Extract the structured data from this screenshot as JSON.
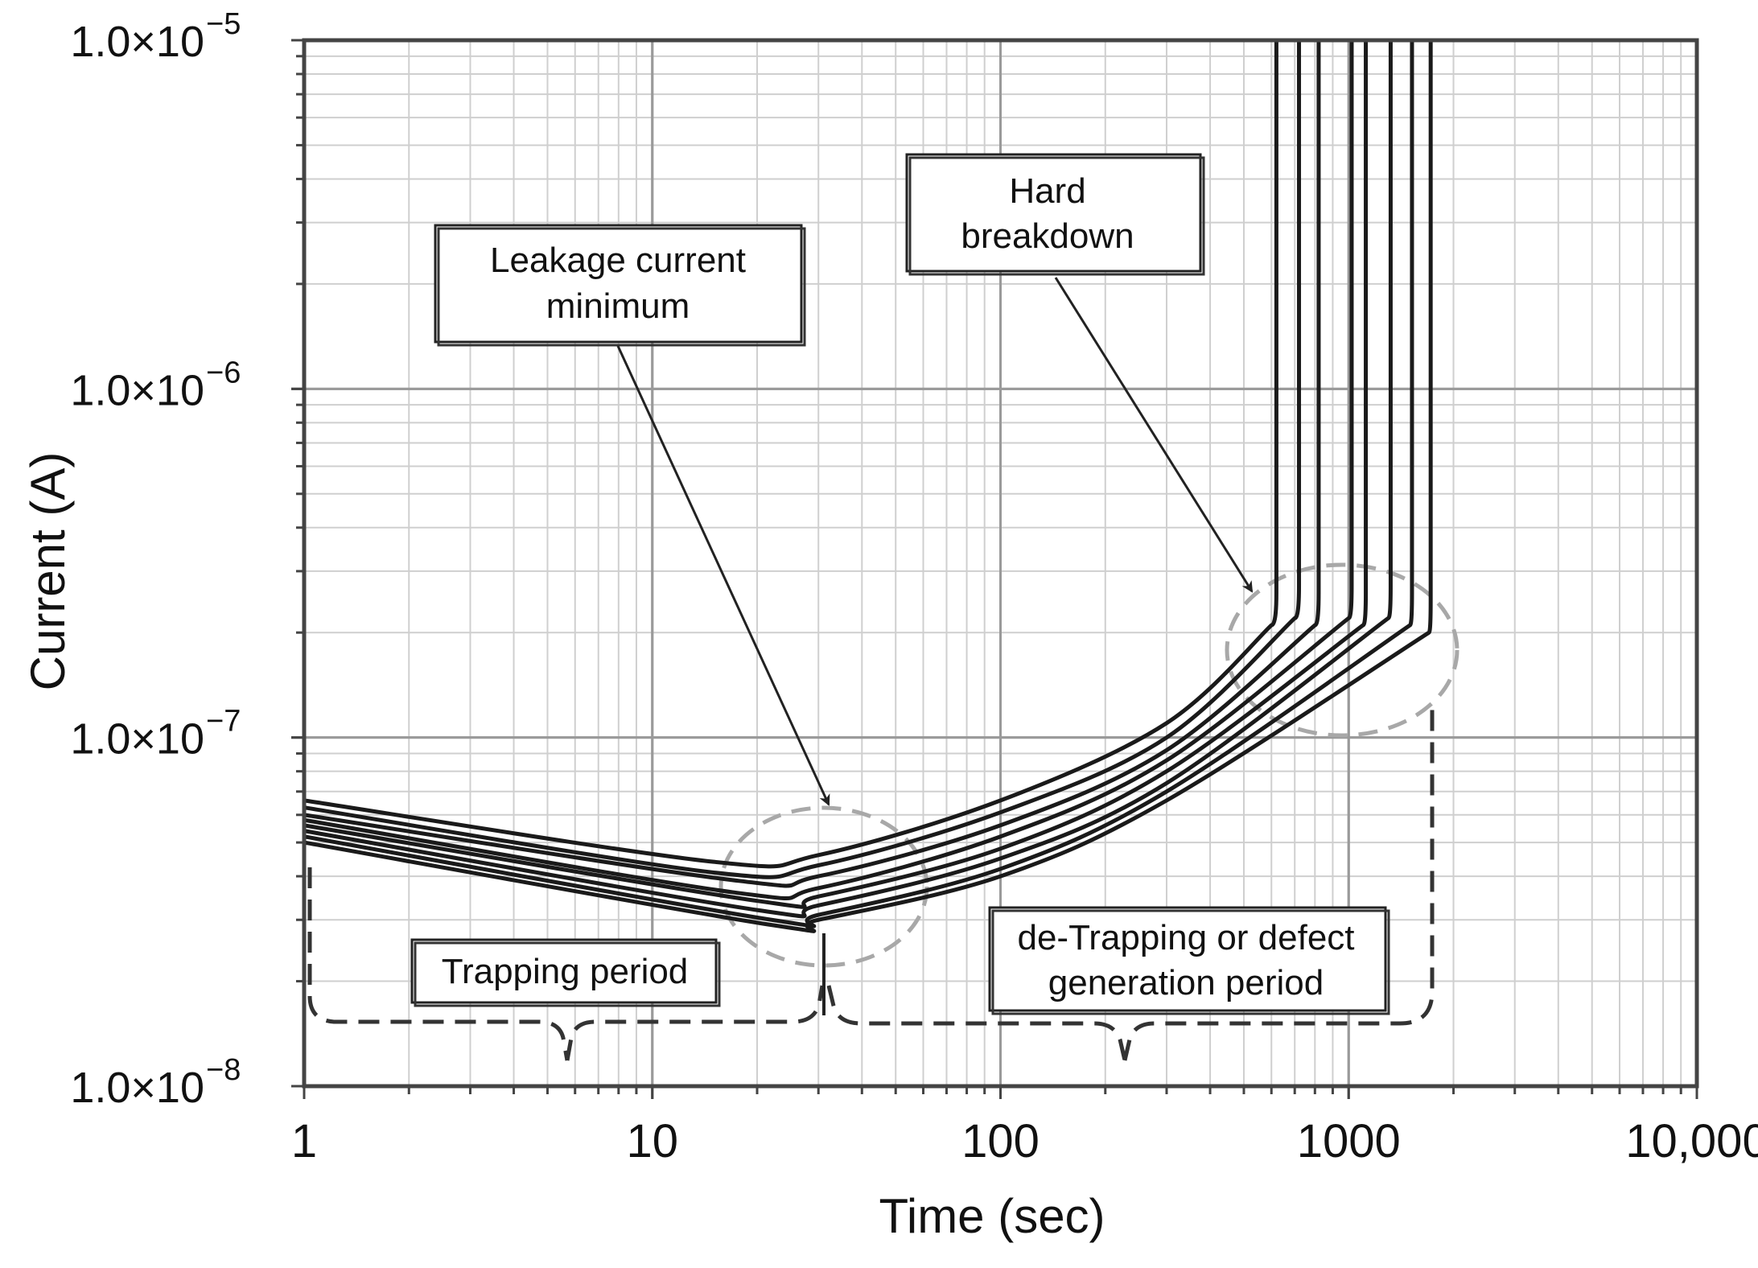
{
  "chart_data": {
    "type": "line",
    "title": "",
    "xlabel": "Time (sec)",
    "ylabel": "Current (A)",
    "x_scale": "log",
    "y_scale": "log",
    "xlim": [
      1,
      10000
    ],
    "ylim": [
      1e-08,
      1e-05
    ],
    "grid": true,
    "x_ticks": [
      {
        "value": 1,
        "label": "1"
      },
      {
        "value": 10,
        "label": "10"
      },
      {
        "value": 100,
        "label": "100"
      },
      {
        "value": 1000,
        "label": "1000"
      },
      {
        "value": 10000,
        "label": "10,000"
      }
    ],
    "y_ticks": [
      {
        "value": 1e-08,
        "base": "1.0×10",
        "exp": "−8"
      },
      {
        "value": 1e-07,
        "base": "1.0×10",
        "exp": "−7"
      },
      {
        "value": 1e-06,
        "base": "1.0×10",
        "exp": "−6"
      },
      {
        "value": 1e-05,
        "base": "1.0×10",
        "exp": "−5"
      }
    ],
    "series": [
      {
        "values": [
          [
            1,
            6.6e-08
          ],
          [
            15,
            4.4e-08
          ],
          [
            30,
            4.6e-08
          ],
          [
            100,
            6.6e-08
          ],
          [
            300,
            1.1e-07
          ],
          [
            600,
            2.1e-07
          ],
          [
            620,
            1e-05
          ]
        ]
      },
      {
        "values": [
          [
            1,
            6.3e-08
          ],
          [
            15,
            4.1e-08
          ],
          [
            30,
            4.3e-08
          ],
          [
            100,
            6.1e-08
          ],
          [
            300,
            1e-07
          ],
          [
            700,
            2.2e-07
          ],
          [
            720,
            1e-05
          ]
        ]
      },
      {
        "values": [
          [
            1,
            6e-08
          ],
          [
            17,
            3.9e-08
          ],
          [
            30,
            4e-08
          ],
          [
            100,
            5.6e-08
          ],
          [
            300,
            9.2e-08
          ],
          [
            800,
            2.1e-07
          ],
          [
            820,
            1e-05
          ]
        ]
      },
      {
        "values": [
          [
            1,
            5.8e-08
          ],
          [
            17,
            3.6e-08
          ],
          [
            30,
            3.7e-08
          ],
          [
            100,
            5.2e-08
          ],
          [
            300,
            8.6e-08
          ],
          [
            1000,
            2.2e-07
          ],
          [
            1020,
            1e-05
          ]
        ]
      },
      {
        "values": [
          [
            1,
            5.6e-08
          ],
          [
            20,
            3.4e-08
          ],
          [
            30,
            3.5e-08
          ],
          [
            100,
            4.8e-08
          ],
          [
            300,
            8e-08
          ],
          [
            1100,
            2.1e-07
          ],
          [
            1120,
            1e-05
          ]
        ]
      },
      {
        "values": [
          [
            1,
            5.4e-08
          ],
          [
            20,
            3.2e-08
          ],
          [
            30,
            3.3e-08
          ],
          [
            100,
            4.5e-08
          ],
          [
            300,
            7.4e-08
          ],
          [
            1300,
            2.2e-07
          ],
          [
            1320,
            1e-05
          ]
        ]
      },
      {
        "values": [
          [
            1,
            5.2e-08
          ],
          [
            22,
            3e-08
          ],
          [
            30,
            3.1e-08
          ],
          [
            100,
            4.2e-08
          ],
          [
            300,
            7e-08
          ],
          [
            1500,
            2.1e-07
          ],
          [
            1520,
            1e-05
          ]
        ]
      },
      {
        "values": [
          [
            1,
            5e-08
          ],
          [
            22,
            2.9e-08
          ],
          [
            30,
            3e-08
          ],
          [
            100,
            4e-08
          ],
          [
            300,
            6.6e-08
          ],
          [
            1700,
            2e-07
          ],
          [
            1720,
            1e-05
          ]
        ]
      }
    ],
    "annotations": [
      {
        "id": "leakage",
        "lines": [
          "Leakage current",
          "minimum"
        ],
        "target": [
          32,
          6.5e-08
        ]
      },
      {
        "id": "hard",
        "lines": [
          "Hard",
          "breakdown"
        ],
        "target": [
          520,
          2.6e-07
        ]
      },
      {
        "id": "trapping",
        "lines": [
          "Trapping period"
        ]
      },
      {
        "id": "detrapping",
        "lines": [
          "de-Trapping or defect",
          "generation period"
        ]
      }
    ]
  }
}
